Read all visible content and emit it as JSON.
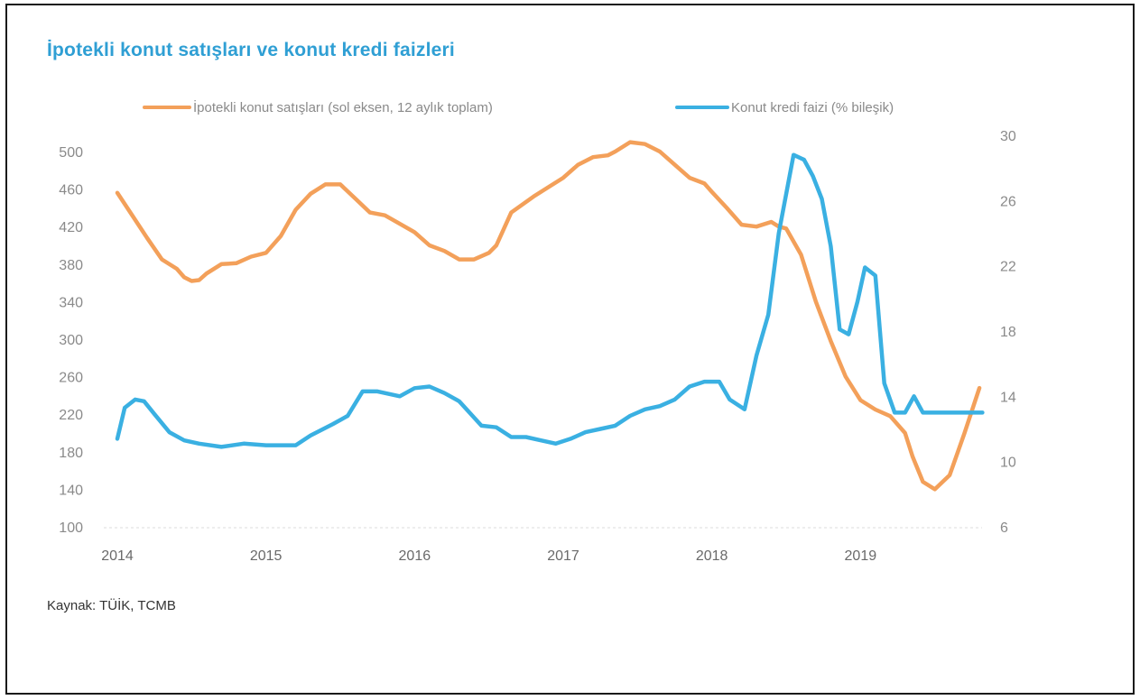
{
  "chart_data": {
    "type": "line",
    "title": "İpotekli konut satışları ve konut kredi faizleri",
    "source": "Kaynak: TÜİK, TCMB",
    "legend_placement": "top",
    "grid": false,
    "y_left": {
      "ticks": [
        100,
        140,
        180,
        220,
        260,
        300,
        340,
        380,
        420,
        460,
        500
      ],
      "lim": [
        100,
        510
      ]
    },
    "y_right": {
      "ticks": [
        6,
        10,
        14,
        18,
        22,
        26,
        30
      ],
      "lim": [
        6,
        30
      ]
    },
    "x_ticks": [
      "2014",
      "2015",
      "2016",
      "2017",
      "2018",
      "2019"
    ],
    "series": [
      {
        "name": "İpotekli konut satışları (sol eksen, 12 aylık toplam)",
        "color": "#f3a05a",
        "axis": "left",
        "x": [
          2014.0,
          2014.1,
          2014.2,
          2014.3,
          2014.4,
          2014.45,
          2014.5,
          2014.55,
          2014.6,
          2014.7,
          2014.8,
          2014.9,
          2015.0,
          2015.1,
          2015.2,
          2015.3,
          2015.4,
          2015.5,
          2015.6,
          2015.7,
          2015.8,
          2015.9,
          2016.0,
          2016.1,
          2016.2,
          2016.3,
          2016.4,
          2016.5,
          2016.55,
          2016.65,
          2016.8,
          2016.9,
          2017.0,
          2017.1,
          2017.2,
          2017.3,
          2017.35,
          2017.45,
          2017.55,
          2017.65,
          2017.75,
          2017.85,
          2017.95,
          2018.0,
          2018.1,
          2018.2,
          2018.3,
          2018.4,
          2018.45,
          2018.5,
          2018.6,
          2018.7,
          2018.8,
          2018.9,
          2019.0,
          2019.1,
          2019.2,
          2019.3,
          2019.35,
          2019.42,
          2019.5,
          2019.6,
          2019.7,
          2019.8
        ],
        "values": [
          456,
          432,
          408,
          385,
          375,
          366,
          362,
          363,
          370,
          380,
          381,
          388,
          392,
          410,
          438,
          455,
          465,
          465,
          450,
          435,
          432,
          423,
          414,
          400,
          394,
          385,
          385,
          392,
          400,
          435,
          452,
          462,
          472,
          486,
          494,
          496,
          500,
          510,
          508,
          500,
          486,
          472,
          466,
          457,
          440,
          422,
          420,
          425,
          420,
          418,
          390,
          340,
          298,
          260,
          235,
          225,
          218,
          200,
          175,
          148,
          140,
          155,
          200,
          248
        ]
      },
      {
        "name": "Konut kredi faizi (% bileşik)",
        "color": "#3ab0e2",
        "axis": "right",
        "x": [
          2014.0,
          2014.05,
          2014.12,
          2014.18,
          2014.25,
          2014.35,
          2014.45,
          2014.55,
          2014.7,
          2014.85,
          2015.0,
          2015.1,
          2015.2,
          2015.3,
          2015.45,
          2015.55,
          2015.65,
          2015.75,
          2015.9,
          2016.0,
          2016.1,
          2016.2,
          2016.3,
          2016.45,
          2016.55,
          2016.65,
          2016.75,
          2016.85,
          2016.95,
          2017.05,
          2017.15,
          2017.25,
          2017.35,
          2017.45,
          2017.55,
          2017.65,
          2017.75,
          2017.85,
          2017.95,
          2018.05,
          2018.12,
          2018.22,
          2018.3,
          2018.38,
          2018.45,
          2018.55,
          2018.62,
          2018.68,
          2018.74,
          2018.8,
          2018.86,
          2018.92,
          2018.98,
          2019.03,
          2019.1,
          2019.16,
          2019.23,
          2019.3,
          2019.36,
          2019.42,
          2019.48,
          2019.56,
          2019.66,
          2019.75,
          2019.82
        ],
        "values": [
          11.4,
          13.3,
          13.8,
          13.7,
          12.9,
          11.8,
          11.3,
          11.1,
          10.9,
          11.1,
          11.0,
          11.0,
          11.0,
          11.6,
          12.3,
          12.8,
          14.3,
          14.3,
          14.0,
          14.5,
          14.6,
          14.2,
          13.7,
          12.2,
          12.1,
          11.5,
          11.5,
          11.3,
          11.1,
          11.4,
          11.8,
          12.0,
          12.2,
          12.8,
          13.2,
          13.4,
          13.8,
          14.6,
          14.9,
          14.9,
          13.8,
          13.2,
          16.5,
          19.0,
          24.0,
          28.8,
          28.5,
          27.5,
          26.1,
          23.2,
          18.1,
          17.8,
          19.8,
          21.9,
          21.4,
          14.8,
          13.0,
          13.0,
          14.0,
          13.0,
          13.0,
          13.0,
          13.0,
          13.0,
          13.0
        ]
      }
    ]
  }
}
